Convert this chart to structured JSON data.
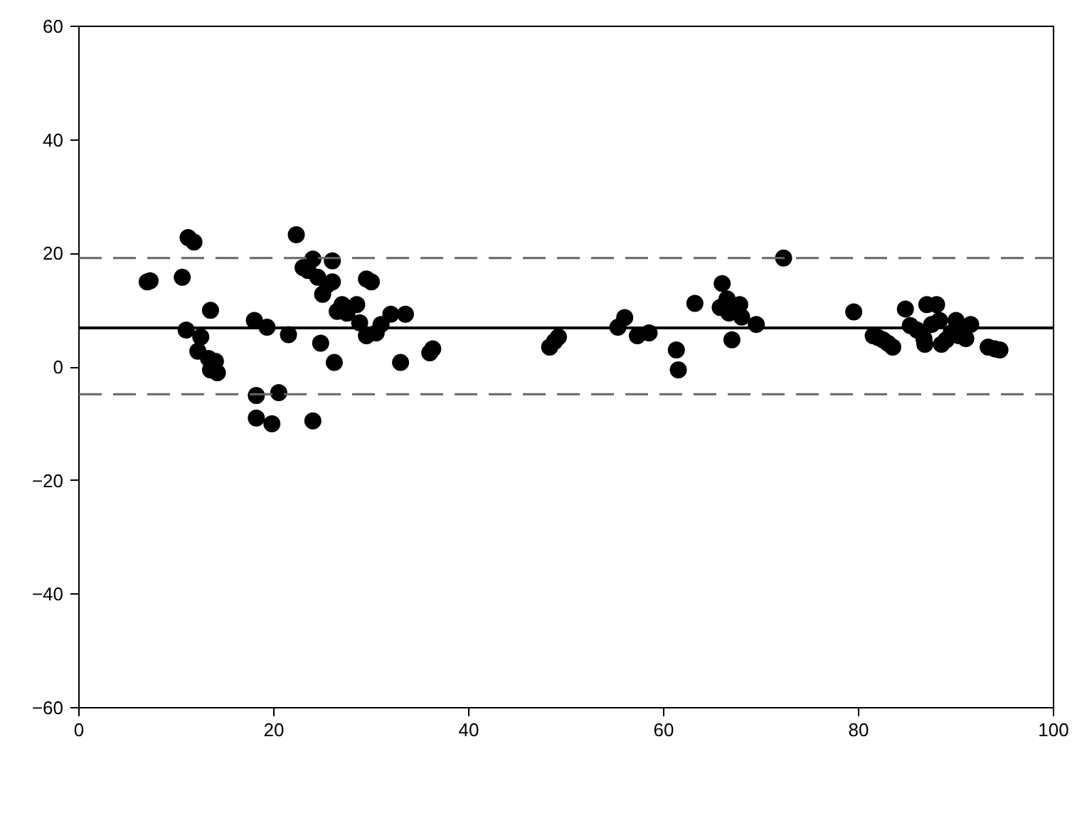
{
  "chart_data": {
    "type": "scatter",
    "x": [
      7,
      7.3,
      10.6,
      11,
      11.2,
      11.8,
      12.2,
      12.5,
      13.5,
      13.3,
      13.5,
      14,
      14.2,
      18,
      18.2,
      18.2,
      19.3,
      19.8,
      20.5,
      21.5,
      22.3,
      23,
      23.5,
      24,
      24,
      24.5,
      24.8,
      25,
      25.5,
      26,
      26,
      26.2,
      26.5,
      27,
      27.5,
      28.5,
      28.8,
      29.5,
      30,
      29.5,
      30.5,
      31,
      32,
      33,
      33.5,
      36,
      36.3,
      48.3,
      48.8,
      49.2,
      55.3,
      56,
      57.3,
      58.5,
      61.3,
      61.5,
      63.2,
      65.8,
      66,
      66.5,
      66.7,
      67,
      67.8,
      68,
      69.5,
      72.3,
      79.5,
      81.5,
      82,
      82.5,
      83,
      83.5,
      84.8,
      85.3,
      86,
      86.7,
      86.8,
      87,
      87.5,
      88,
      88.3,
      88.5,
      89,
      89.5,
      90,
      90.3,
      91,
      91.5,
      93.3,
      94,
      94.5
    ],
    "values": [
      15,
      15.2,
      15.8,
      6.5,
      22.8,
      22,
      2.8,
      5.3,
      10,
      1.5,
      -0.5,
      1,
      -1,
      8.2,
      -5,
      -9,
      7,
      -10,
      -4.5,
      5.7,
      23.3,
      17.5,
      17,
      19,
      -9.5,
      15.8,
      4.2,
      12.8,
      14.5,
      18.7,
      15,
      0.8,
      9.8,
      11,
      9.5,
      11,
      7.8,
      15.5,
      15,
      5.5,
      6,
      7.5,
      9.3,
      0.8,
      9.3,
      2.5,
      3.2,
      3.5,
      4.5,
      5.3,
      7,
      8.7,
      5.5,
      6,
      3,
      -0.5,
      11.2,
      10.5,
      14.7,
      12,
      9.5,
      4.8,
      11,
      8.8,
      7.5,
      19.2,
      9.7,
      5.5,
      5.2,
      4.8,
      4.2,
      3.5,
      10.2,
      7.3,
      6.5,
      5,
      4,
      11,
      7.5,
      11,
      8.2,
      4,
      4.8,
      6,
      8.2,
      5.5,
      5,
      7.5,
      3.5,
      3.2,
      3
    ],
    "color": "#000000",
    "marker": "circle",
    "xlim": [
      0,
      100
    ],
    "ylim": [
      -60,
      60
    ],
    "xticks": [
      0,
      20,
      40,
      60,
      80,
      100
    ],
    "yticks": [
      -60,
      -40,
      -20,
      0,
      20,
      40,
      60
    ],
    "grid": false,
    "ref_lines": [
      {
        "axis": "y",
        "value": 6.9,
        "color": "#000000",
        "line_style": "solid"
      },
      {
        "axis": "y",
        "value": 19.2,
        "color": "#666666",
        "line_style": "dashed"
      },
      {
        "axis": "y",
        "value": -4.8,
        "color": "#666666",
        "line_style": "dashed"
      }
    ]
  }
}
